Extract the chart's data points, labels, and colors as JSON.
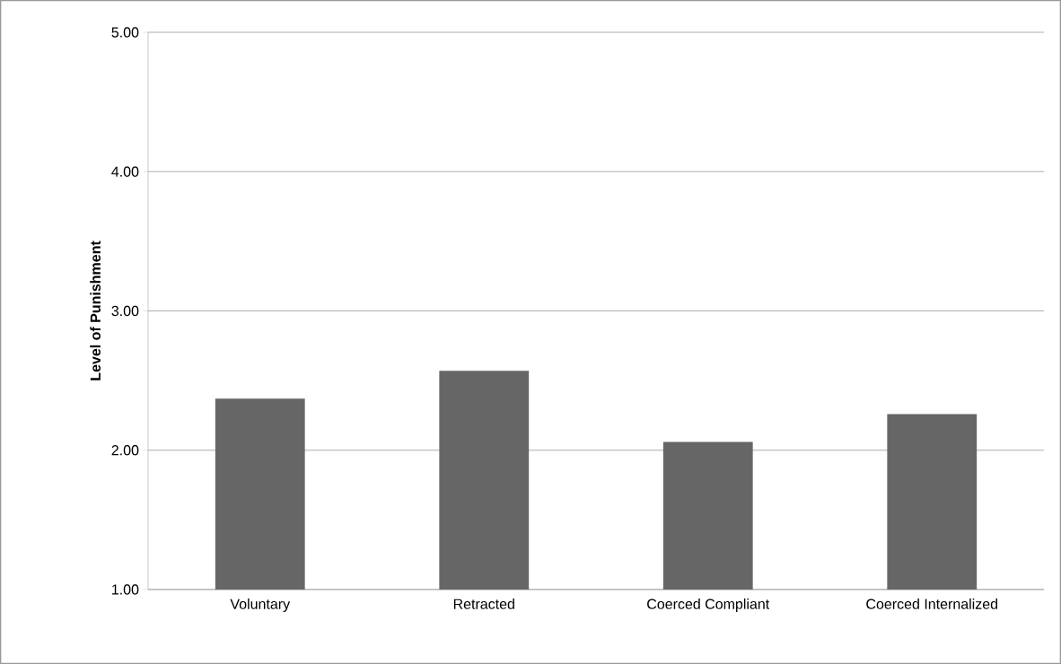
{
  "chart_data": {
    "type": "bar",
    "ylabel": "Level of Punishment",
    "categories": [
      "Voluntary",
      "Retracted",
      "Coerced Compliant",
      "Coerced Internalized"
    ],
    "values": [
      2.37,
      2.57,
      2.06,
      2.26
    ],
    "color": "#666666",
    "ylim": [
      1,
      5
    ],
    "yticks": [
      {
        "value": 1,
        "label": "1.00"
      },
      {
        "value": 2,
        "label": "2.00"
      },
      {
        "value": 3,
        "label": "3.00"
      },
      {
        "value": 4,
        "label": "4.00"
      },
      {
        "value": 5,
        "label": "5.00"
      }
    ],
    "grid": "y"
  }
}
